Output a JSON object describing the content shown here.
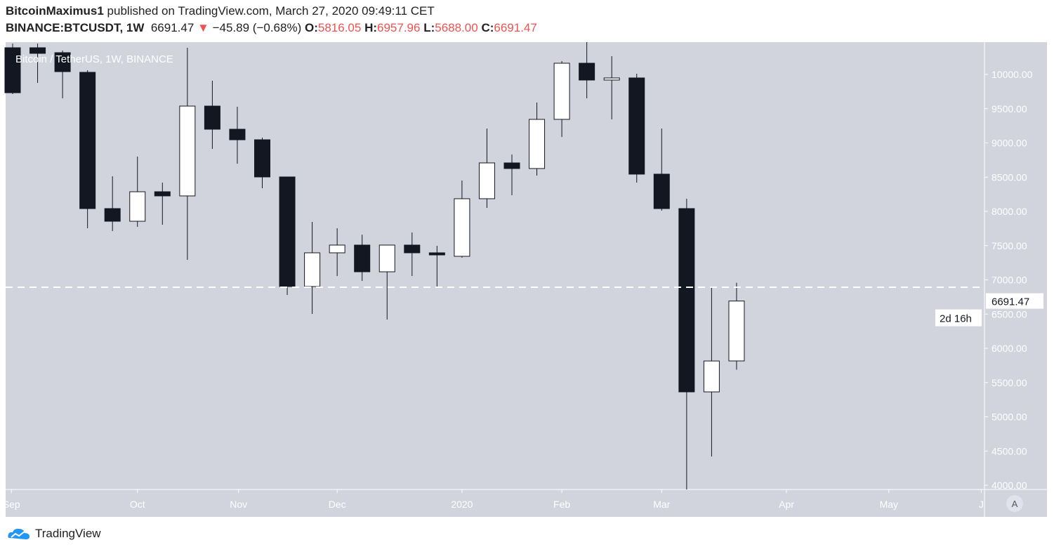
{
  "header": {
    "author": "BitcoinMaximus1",
    "published": "published on TradingView.com, March 27, 2020 09:49:11 CET",
    "symbol": "BINANCE:BTCUSDT, 1W",
    "last": "6691.47",
    "down_arrow": "▼",
    "change": "−45.89 (−0.68%)",
    "o_label": "O:",
    "o": "5816.05",
    "h_label": "H:",
    "h": "6957.96",
    "l_label": "L:",
    "l": "5688.00",
    "c_label": "C:",
    "c": "6691.47"
  },
  "chart_data": {
    "type": "candlestick",
    "title": "Bitcoin / TetherUS, 1W, BINANCE",
    "ylim": [
      3850,
      10550
    ],
    "y_ticks": [
      "10000.00",
      "9500.00",
      "9000.00",
      "8500.00",
      "8000.00",
      "7500.00",
      "7000.00",
      "6500.00",
      "6000.00",
      "5500.00",
      "5000.00",
      "4500.00",
      "4000.00"
    ],
    "x_ticks": [
      {
        "label": "Sep",
        "week": -0.05
      },
      {
        "label": "Oct",
        "week": 5
      },
      {
        "label": "Nov",
        "week": 9.05
      },
      {
        "label": "Dec",
        "week": 13
      },
      {
        "label": "2020",
        "week": 18
      },
      {
        "label": "Feb",
        "week": 22
      },
      {
        "label": "Mar",
        "week": 26
      },
      {
        "label": "Apr",
        "week": 31
      },
      {
        "label": "May",
        "week": 35.1
      },
      {
        "label": "J",
        "week": 38.8
      }
    ],
    "candles": [
      [
        10390,
        10450,
        9713,
        9733
      ],
      [
        10390,
        10450,
        9877,
        10308
      ],
      [
        10318,
        10349,
        9651,
        10041
      ],
      [
        10031,
        10062,
        7754,
        8041
      ],
      [
        8041,
        8513,
        7713,
        7856
      ],
      [
        7856,
        8800,
        7774,
        8287
      ],
      [
        8287,
        8420,
        7805,
        8226
      ],
      [
        8226,
        10390,
        7292,
        9538
      ],
      [
        9538,
        9908,
        8913,
        9200
      ],
      [
        9200,
        9528,
        8697,
        9046
      ],
      [
        9046,
        9077,
        8338,
        8503
      ],
      [
        8503,
        8503,
        6779,
        6903
      ],
      [
        6903,
        7846,
        6503,
        7395
      ],
      [
        7395,
        7754,
        7056,
        7508
      ],
      [
        7508,
        7660,
        6985,
        7118
      ],
      [
        7118,
        7508,
        6421,
        7508
      ],
      [
        7508,
        7692,
        7056,
        7395
      ],
      [
        7395,
        7497,
        6882,
        7364
      ],
      [
        7344,
        8451,
        7323,
        8185
      ],
      [
        8185,
        9210,
        8051,
        8708
      ],
      [
        8708,
        8831,
        8236,
        8626
      ],
      [
        8626,
        9590,
        8523,
        9344
      ],
      [
        9344,
        10195,
        9087,
        10164
      ],
      [
        10164,
        10500,
        9651,
        9918
      ],
      [
        9918,
        10267,
        9344,
        9949
      ],
      [
        9949,
        10010,
        8421,
        8544
      ],
      [
        8544,
        9210,
        8010,
        8041
      ],
      [
        8041,
        8185,
        3782,
        5364
      ],
      [
        5364,
        6903,
        4420,
        5815
      ],
      [
        5816,
        6958,
        5688,
        6691
      ]
    ],
    "horizontal_line": 6892,
    "last_price_label": "6691.47",
    "countdown": "2d 16h",
    "colors": {
      "background": "#d1d4dc",
      "down": "#131722",
      "up": "#ffffff",
      "axis_text": "#ffffff"
    }
  },
  "footer": {
    "brand": "TradingView",
    "auto_scale": "A"
  }
}
